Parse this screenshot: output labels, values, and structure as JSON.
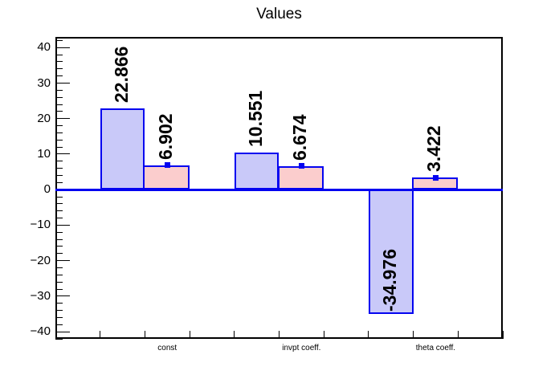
{
  "title": "Values",
  "chart_data": {
    "type": "bar",
    "title": "Values",
    "xlabel": "",
    "ylabel": "",
    "n_bins": 10,
    "ylim": [
      -42,
      43
    ],
    "grid": false,
    "legend": "none",
    "background": "#ffffff",
    "axis_color": "#000000",
    "zero_line_color": "#0404f0",
    "categories": [
      "const",
      "invpt coeff.",
      "theta coeff."
    ],
    "label_bins": [
      3,
      6,
      9
    ],
    "series": [
      {
        "name": "primary",
        "fill": "#c9c9f9",
        "line": "#0404f0",
        "bins": [
          2,
          5,
          8
        ],
        "values": [
          22.866,
          10.551,
          -34.976
        ],
        "labels": [
          "22.866",
          "10.551",
          "-34.976"
        ],
        "marker": false
      },
      {
        "name": "secondary",
        "fill": "#fbcdcd",
        "line": "#0404f0",
        "bins": [
          3,
          6,
          9
        ],
        "values": [
          6.902,
          6.674,
          3.422
        ],
        "labels": [
          "6.902",
          "6.674",
          "3.422"
        ],
        "marker": true
      }
    ],
    "y_axis": {
      "major_values": [
        40,
        30,
        20,
        10,
        0,
        -10,
        -20,
        -30,
        -40
      ],
      "major_labels": [
        "40",
        "30",
        "20",
        "10",
        "0",
        "−10",
        "−20",
        "−30",
        "−40"
      ],
      "minor_step": 2
    }
  }
}
